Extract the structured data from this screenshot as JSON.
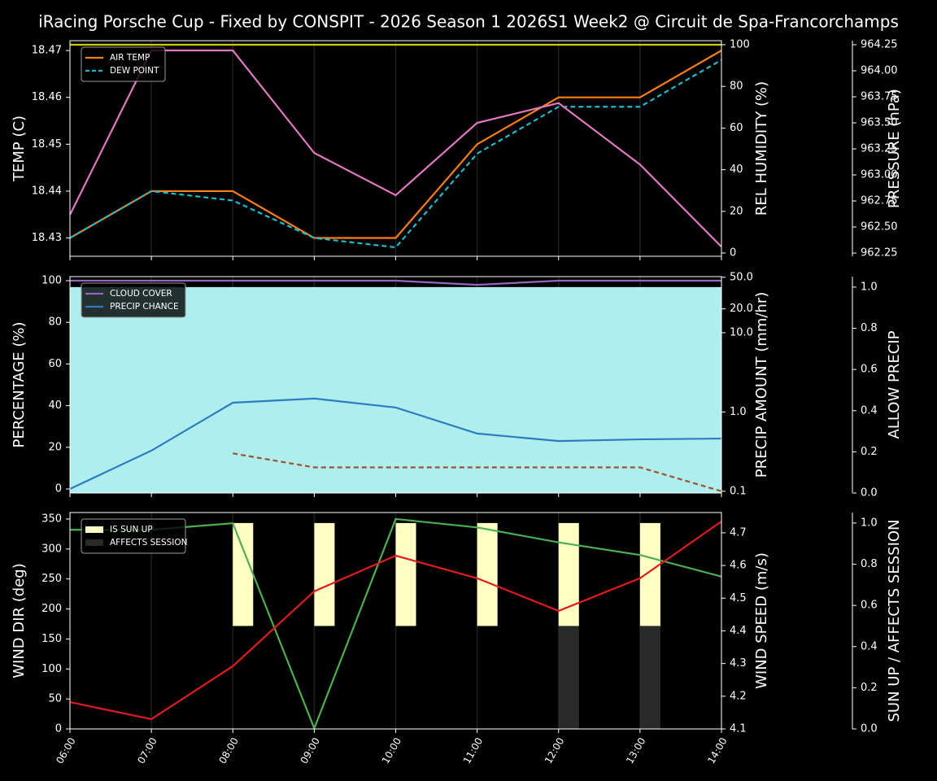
{
  "title": "iRacing Porsche Cup - Fixed by CONSPIT - 2026 Season 1 2026S1 Week2 @ Circuit de Spa-Francorchamps",
  "chart_data": [
    {
      "type": "line",
      "legend": "upper left",
      "grid": true,
      "ylabel": "TEMP (C)",
      "ylabel_color": "#ffffff",
      "y2label": "REL HUMIDITY (%)",
      "y2label_color": "#cccc00",
      "y3label": "PRESSURE (hPa)",
      "y3label_color": "#e377c2",
      "ylim": [
        18.4261,
        18.4721
      ],
      "yticks": [
        18.43,
        18.44,
        18.45,
        18.46,
        18.47
      ],
      "y2lim": [
        -1.56,
        101.95
      ],
      "y2ticks": [
        0,
        20,
        40,
        60,
        80,
        100
      ],
      "y3lim": [
        962.219,
        964.289
      ],
      "y3ticks": [
        962.25,
        {
          "value": 962.5,
          "label": "962.50"
        },
        962.75,
        {
          "value": 963,
          "label": "963.00"
        },
        963.25,
        {
          "value": 963.5,
          "label": "963.50"
        },
        963.75,
        {
          "value": 964,
          "label": "964.00"
        },
        964.25
      ],
      "series": [
        {
          "name": "AIR TEMP",
          "color": "#ff7f0e",
          "kind": "line",
          "axis": "y",
          "values": [
            18.43,
            18.44,
            18.44,
            18.43,
            18.43,
            18.45,
            18.46,
            18.46,
            18.47
          ]
        },
        {
          "name": "DEW POINT",
          "color": "#17becf",
          "kind": "line",
          "dash": true,
          "axis": "y",
          "values": [
            18.43,
            18.44,
            18.438,
            18.43,
            18.428,
            18.448,
            18.458,
            18.458,
            18.468
          ]
        },
        {
          "color": "#cccc00",
          "kind": "line",
          "axis": "y2",
          "values": [
            100,
            100,
            100,
            100,
            100,
            100,
            100,
            100,
            100
          ]
        },
        {
          "color": "#e377c2",
          "kind": "line",
          "axis": "y3",
          "values": [
            962.617,
            964.195,
            964.195,
            963.211,
            962.805,
            963.5,
            963.69,
            963.1,
            962.31
          ]
        }
      ]
    },
    {
      "type": "line",
      "legend": "upper left",
      "grid": true,
      "ylabel": "PERCENTAGE (%)",
      "ylabel_color": "#ffffff",
      "y2label": "PRECIP AMOUNT (mm/hr)",
      "y2label_color": "#a0522d",
      "y2scale": "log",
      "y3label": "ALLOW PRECIP",
      "y3label_color": "#ffffff",
      "ylim": [
        -1.95,
        101.95
      ],
      "yticks": [
        0,
        20,
        40,
        60,
        80,
        100
      ],
      "y2lim": [
        0.095,
        51
      ],
      "y2ticks": [
        0.1,
        {
          "value": 1,
          "label": "1.0"
        },
        {
          "value": 10,
          "label": "10.0"
        },
        {
          "value": 20,
          "label": "20.0"
        },
        {
          "value": 50,
          "label": "50.0"
        }
      ],
      "y3lim": [
        0,
        1.051
      ],
      "y3ticks": [
        {
          "value": 0,
          "label": "0.0"
        },
        0.2,
        0.4,
        0.6,
        0.8,
        {
          "value": 1,
          "label": "1.0"
        }
      ],
      "series": [
        {
          "color": "#afeeee",
          "kind": "area",
          "axis": "y3",
          "values": [
            1,
            1,
            1,
            1,
            1,
            1,
            1,
            1,
            1
          ]
        },
        {
          "name": "CLOUD COVER",
          "color": "#9467bd",
          "kind": "line",
          "axis": "y",
          "values": [
            100,
            100,
            100,
            100,
            100,
            98,
            100,
            100,
            100
          ]
        },
        {
          "name": "PRECIP CHANCE",
          "color": "#2f7bbf",
          "kind": "line",
          "axis": "y",
          "values": [
            0,
            18.4,
            41.4,
            43.4,
            39.1,
            26.6,
            23,
            23.8,
            24.2
          ]
        },
        {
          "color": "#a0522d",
          "kind": "line",
          "dash": true,
          "axis": "y2",
          "values": [
            null,
            null,
            0.3,
            0.2,
            0.2,
            0.2,
            0.2,
            0.2,
            0.1
          ]
        }
      ]
    },
    {
      "type": "line",
      "legend": "upper left",
      "grid": true,
      "categories": [
        "06:00",
        "07:00",
        "08:00",
        "09:00",
        "10:00",
        "11:00",
        "12:00",
        "13:00",
        "14:00"
      ],
      "ylabel": "WIND DIR (deg)",
      "ylabel_color": "#4caf50",
      "y2label": "WIND SPEED (m/s)",
      "y2label_color": "#e31a1c",
      "y3label": "SUN UP / AFFECTS SESSION",
      "y3label_color": "#ffffff",
      "ylim": [
        0,
        360.8
      ],
      "yticks": [
        0,
        50,
        100,
        150,
        200,
        250,
        300,
        350
      ],
      "y2lim": [
        4.1,
        4.762
      ],
      "y2ticks": [
        4.1,
        4.2,
        4.3,
        4.4,
        4.5,
        4.6,
        4.7
      ],
      "y3lim": [
        0,
        1.051
      ],
      "y3ticks": [
        {
          "value": 0,
          "label": "0.0"
        },
        0.2,
        0.4,
        0.6,
        0.8,
        {
          "value": 1,
          "label": "1.0"
        }
      ],
      "series": [
        {
          "name": "IS SUN UP",
          "color": "#ffffc4",
          "kind": "bar",
          "bottom": 0.5,
          "axis": "y3",
          "values": [
            0,
            0,
            0.5,
            0.5,
            0.5,
            0.5,
            0.5,
            0.5,
            0
          ]
        },
        {
          "name": "AFFECTS SESSION",
          "color": "#2a2a2a",
          "kind": "bar",
          "bottom": 0,
          "axis": "y3",
          "values": [
            0,
            0,
            0,
            0,
            0,
            0,
            0.5,
            0.5,
            0
          ]
        },
        {
          "color": "#4caf50",
          "kind": "line",
          "axis": "y",
          "values": [
            332,
            332,
            343,
            1,
            350,
            336,
            311,
            290,
            254
          ]
        },
        {
          "color": "#e31a1c",
          "kind": "line",
          "axis": "y2",
          "values": [
            4.182,
            4.13,
            4.292,
            4.521,
            4.63,
            4.561,
            4.461,
            4.561,
            4.735
          ]
        }
      ]
    }
  ]
}
